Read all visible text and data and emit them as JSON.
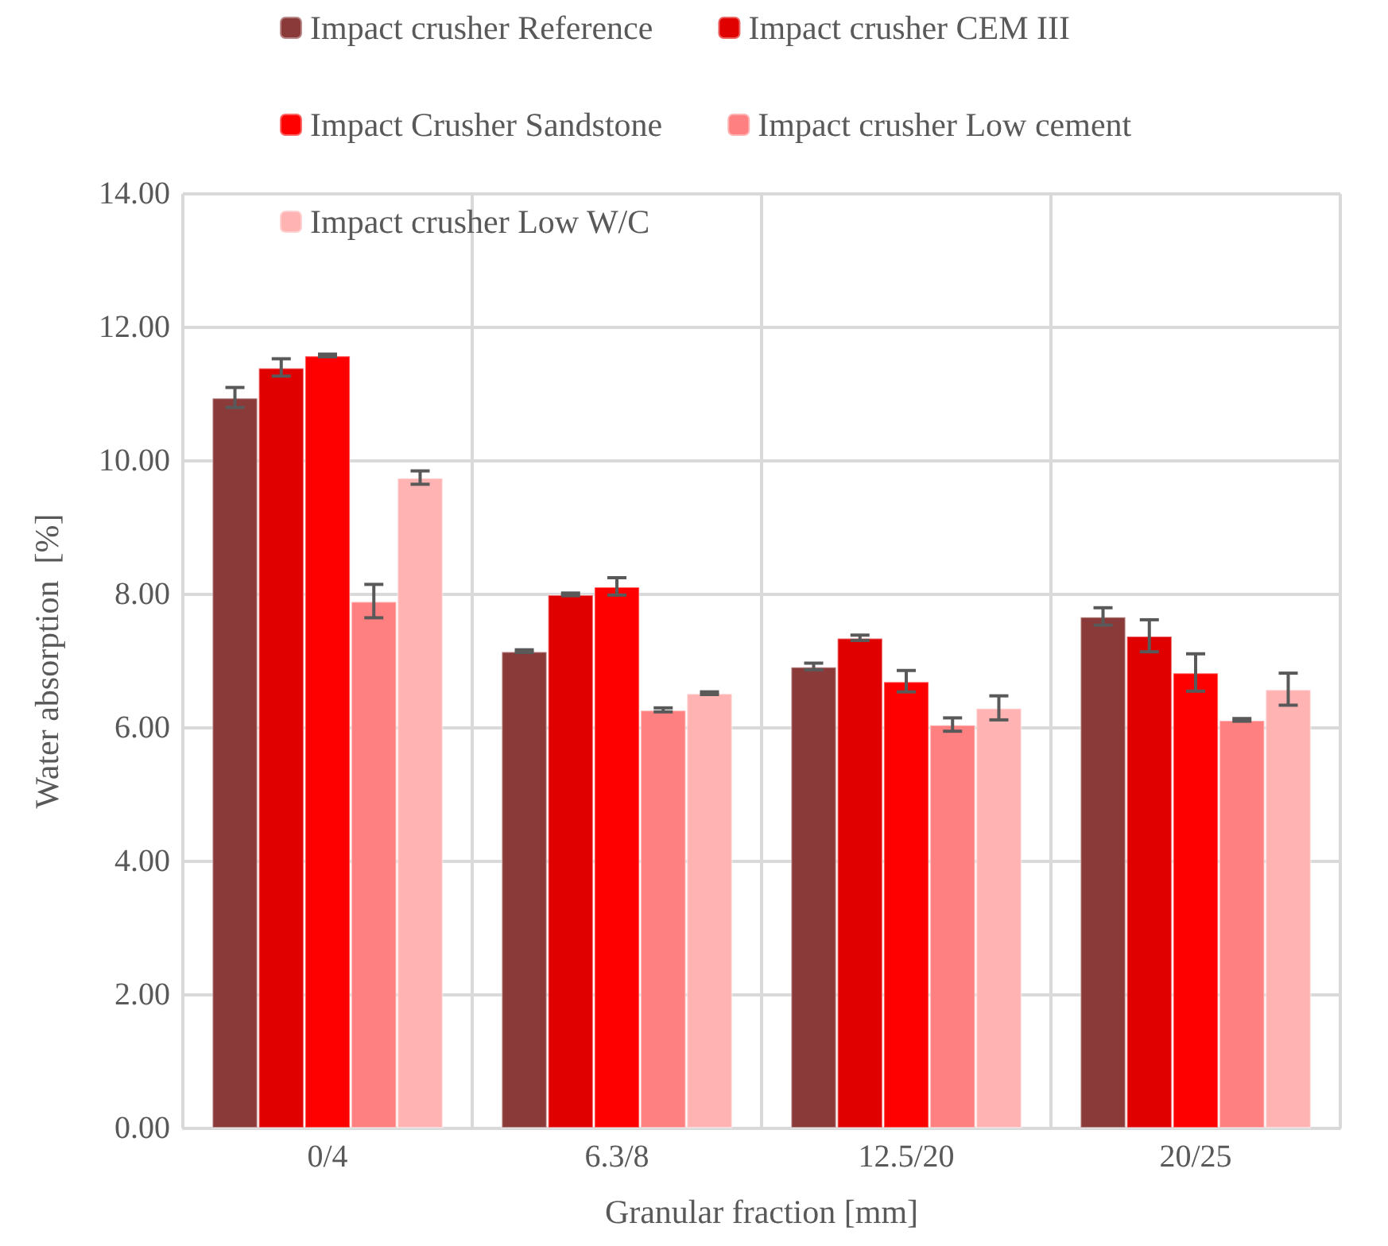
{
  "chart_data": {
    "type": "bar",
    "xlabel": "Granular fraction [mm]",
    "ylabel": "Water absorption  [%]",
    "categories": [
      "0/4",
      "6.3/8",
      "12.5/20",
      "20/25"
    ],
    "series": [
      {
        "name": "Impact crusher Reference",
        "color": "#8b3a3a",
        "values": [
          10.95,
          7.15,
          6.92,
          7.67
        ],
        "errors": [
          0.15,
          0.02,
          0.05,
          0.13
        ]
      },
      {
        "name": "Impact crusher CEM III",
        "color": "#e00000",
        "values": [
          11.4,
          8.0,
          7.35,
          7.38
        ],
        "errors": [
          0.13,
          0.02,
          0.04,
          0.24
        ]
      },
      {
        "name": "Impact Crusher Sandstone",
        "color": "#ff0000",
        "values": [
          11.58,
          8.12,
          6.7,
          6.83
        ],
        "errors": [
          0.02,
          0.13,
          0.16,
          0.28
        ]
      },
      {
        "name": "Impact crusher Low cement",
        "color": "#ff8080",
        "values": [
          7.9,
          6.27,
          6.05,
          6.12
        ],
        "errors": [
          0.25,
          0.03,
          0.1,
          0.02
        ]
      },
      {
        "name": "Impact crusher Low W/C",
        "color": "#ffb3b3",
        "values": [
          9.75,
          6.52,
          6.3,
          6.58
        ],
        "errors": [
          0.1,
          0.02,
          0.18,
          0.24
        ]
      }
    ],
    "ylim": [
      0,
      14
    ],
    "yticks": [
      {
        "value": 0,
        "label": "0.00"
      },
      {
        "value": 2,
        "label": "2.00"
      },
      {
        "value": 4,
        "label": "4.00"
      },
      {
        "value": 6,
        "label": "6.00"
      },
      {
        "value": 8,
        "label": "8.00"
      },
      {
        "value": 10,
        "label": "10.00"
      },
      {
        "value": 12,
        "label": "12.00"
      },
      {
        "value": 14,
        "label": "14.00"
      }
    ],
    "grid": true,
    "legend": "top"
  }
}
